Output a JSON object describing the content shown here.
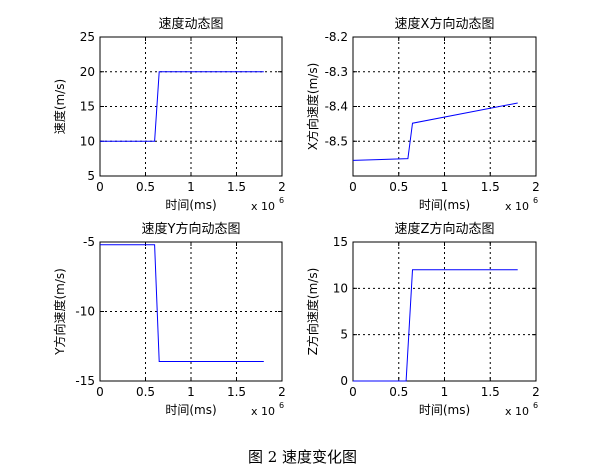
{
  "figure": {
    "caption": "图 2  速度变化图"
  },
  "chart_data": [
    {
      "type": "line",
      "title": "速度动态图",
      "xlabel": "时间(ms)",
      "ylabel": "速度(m/s)",
      "x_exponent_label": "x 10",
      "x_exponent": "6",
      "xlim": [
        0,
        2
      ],
      "ylim": [
        5,
        25
      ],
      "xticks": [
        0,
        0.5,
        1,
        1.5,
        2
      ],
      "xtick_labels": [
        "0",
        "0.5",
        "1",
        "1.5",
        "2"
      ],
      "yticks": [
        5,
        10,
        15,
        20,
        25
      ],
      "ytick_labels": [
        "5",
        "10",
        "15",
        "20",
        "25"
      ],
      "grid": true,
      "series": [
        {
          "color": "#0000ff",
          "x": [
            0,
            0.6,
            0.65,
            1.8
          ],
          "y": [
            10,
            10,
            20,
            20
          ]
        }
      ]
    },
    {
      "type": "line",
      "title": "速度X方向动态图",
      "xlabel": "时间(ms)",
      "ylabel": "X方向速度(m/s)",
      "x_exponent_label": "x 10",
      "x_exponent": "6",
      "xlim": [
        0,
        2
      ],
      "ylim": [
        -8.6,
        -8.2
      ],
      "xticks": [
        0,
        0.5,
        1,
        1.5,
        2
      ],
      "xtick_labels": [
        "0",
        "0.5",
        "1",
        "1.5",
        "2"
      ],
      "yticks": [
        -8.5,
        -8.4,
        -8.3,
        -8.2
      ],
      "ytick_labels": [
        "-8.5",
        "-8.4",
        "-8.3",
        "-8.2"
      ],
      "grid": true,
      "series": [
        {
          "color": "#0000ff",
          "x": [
            0,
            0.6,
            0.65,
            1.8
          ],
          "y": [
            -8.555,
            -8.55,
            -8.448,
            -8.39
          ]
        }
      ]
    },
    {
      "type": "line",
      "title": "速度Y方向动态图",
      "xlabel": "时间(ms)",
      "ylabel": "Y方向速度(m/s)",
      "x_exponent_label": "x 10",
      "x_exponent": "6",
      "xlim": [
        0,
        2
      ],
      "ylim": [
        -15,
        -5
      ],
      "xticks": [
        0,
        0.5,
        1,
        1.5,
        2
      ],
      "xtick_labels": [
        "0",
        "0.5",
        "1",
        "1.5",
        "2"
      ],
      "yticks": [
        -15,
        -10,
        -5
      ],
      "ytick_labels": [
        "-15",
        "-10",
        "-5"
      ],
      "grid": true,
      "series": [
        {
          "color": "#0000ff",
          "x": [
            0,
            0.6,
            0.65,
            1.8
          ],
          "y": [
            -5.2,
            -5.2,
            -13.6,
            -13.6
          ]
        }
      ]
    },
    {
      "type": "line",
      "title": "速度Z方向动态图",
      "xlabel": "时间(ms)",
      "ylabel": "Z方向速度(m/s)",
      "x_exponent_label": "x 10",
      "x_exponent": "6",
      "xlim": [
        0,
        2
      ],
      "ylim": [
        0,
        15
      ],
      "xticks": [
        0,
        0.5,
        1,
        1.5,
        2
      ],
      "xtick_labels": [
        "0",
        "0.5",
        "1",
        "1.5",
        "2"
      ],
      "yticks": [
        0,
        5,
        10,
        15
      ],
      "ytick_labels": [
        "0",
        "5",
        "10",
        "15"
      ],
      "grid": true,
      "series": [
        {
          "color": "#0000ff",
          "x": [
            0,
            0.58,
            0.65,
            1.8
          ],
          "y": [
            0,
            0,
            12,
            12
          ]
        }
      ]
    }
  ]
}
